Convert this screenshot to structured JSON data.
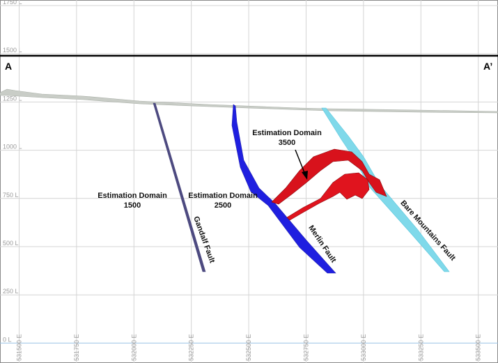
{
  "section": {
    "start": "A",
    "end": "A’"
  },
  "elevation_labels": [
    "1750 L",
    "1500 L",
    "1250 L",
    "1000 L",
    "750 L",
    "500 L",
    "250 L",
    "0 L"
  ],
  "easting_labels": [
    "531500 E",
    "531750 E",
    "532000 E",
    "532250 E",
    "532500 E",
    "532750 E",
    "533000 E",
    "533250 E",
    "533500 E"
  ],
  "annotations": [
    {
      "lines": [
        "Estimation Domain",
        "1500"
      ]
    },
    {
      "lines": [
        "Estimation Domain",
        "2500"
      ]
    },
    {
      "lines": [
        "Estimation Domain",
        "3500"
      ]
    }
  ],
  "faults": [
    "Gandalf Fault",
    "Merlin Fault",
    "Bare Mountains Fault"
  ]
}
